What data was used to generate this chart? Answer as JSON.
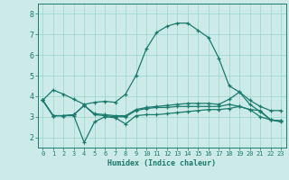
{
  "background_color": "#cceae7",
  "grid_color": "#99d5d0",
  "line_color": "#1a7a6e",
  "xlabel": "Humidex (Indice chaleur)",
  "xlim": [
    -0.5,
    23.5
  ],
  "ylim": [
    1.5,
    8.5
  ],
  "xticks": [
    0,
    1,
    2,
    3,
    4,
    5,
    6,
    7,
    8,
    9,
    10,
    11,
    12,
    13,
    14,
    15,
    16,
    17,
    18,
    19,
    20,
    21,
    22,
    23
  ],
  "yticks": [
    2,
    3,
    4,
    5,
    6,
    7,
    8
  ],
  "line1_x": [
    0,
    1,
    2,
    3,
    4,
    5,
    6,
    7,
    8,
    9,
    10,
    11,
    12,
    13,
    14,
    15,
    16,
    17,
    18,
    19,
    20,
    21,
    22,
    23
  ],
  "line1_y": [
    3.8,
    4.3,
    4.1,
    3.85,
    3.6,
    3.7,
    3.75,
    3.7,
    4.1,
    5.0,
    6.3,
    7.1,
    7.4,
    7.55,
    7.55,
    7.2,
    6.85,
    5.85,
    4.5,
    4.2,
    3.8,
    3.5,
    3.3,
    3.3
  ],
  "line2_x": [
    0,
    1,
    2,
    3,
    4,
    5,
    6,
    7,
    8,
    9,
    10,
    11,
    12,
    13,
    14,
    15,
    16,
    17,
    18,
    19,
    20,
    21,
    22,
    23
  ],
  "line2_y": [
    3.8,
    3.05,
    3.05,
    3.05,
    1.75,
    2.75,
    3.0,
    2.95,
    2.65,
    3.05,
    3.1,
    3.1,
    3.15,
    3.2,
    3.25,
    3.3,
    3.35,
    3.35,
    3.4,
    3.5,
    3.35,
    3.3,
    2.85,
    2.8
  ],
  "line3_x": [
    0,
    1,
    2,
    3,
    4,
    5,
    6,
    7,
    8,
    9,
    10,
    11,
    12,
    13,
    14,
    15,
    16,
    17,
    18,
    19,
    20,
    21,
    22,
    23
  ],
  "line3_y": [
    3.8,
    3.05,
    3.05,
    3.1,
    3.55,
    3.15,
    3.1,
    3.05,
    3.05,
    3.35,
    3.45,
    3.5,
    3.55,
    3.6,
    3.65,
    3.65,
    3.65,
    3.6,
    3.85,
    4.2,
    3.6,
    3.25,
    2.85,
    2.8
  ],
  "line4_x": [
    0,
    1,
    2,
    3,
    4,
    5,
    6,
    7,
    8,
    9,
    10,
    11,
    12,
    13,
    14,
    15,
    16,
    17,
    18,
    19,
    20,
    21,
    22,
    23
  ],
  "line4_y": [
    3.8,
    3.05,
    3.05,
    3.1,
    3.55,
    3.1,
    3.05,
    3.0,
    3.0,
    3.3,
    3.4,
    3.45,
    3.45,
    3.5,
    3.5,
    3.5,
    3.5,
    3.5,
    3.6,
    3.5,
    3.35,
    3.0,
    2.85,
    2.75
  ]
}
